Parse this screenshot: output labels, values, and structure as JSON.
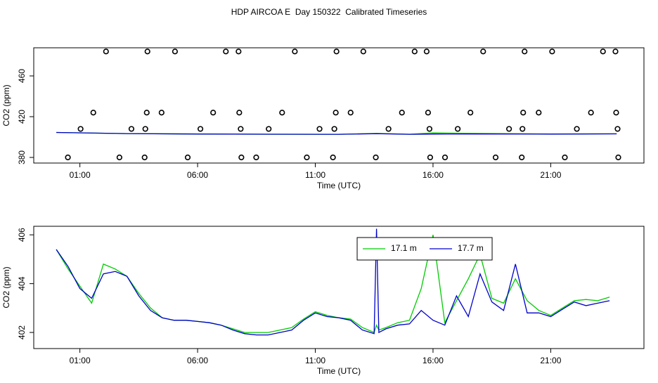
{
  "chart_data": [
    {
      "type": "line",
      "title": "HDP AIRCOA E  Day 150322  Calibrated Timeseries",
      "xlabel": "Time (UTC)",
      "ylabel": "CO2 (ppm)",
      "xlim": [
        -0.96,
        24.96
      ],
      "xticks": [
        {
          "value": 1,
          "label": "01:00"
        },
        {
          "value": 6,
          "label": "06:00"
        },
        {
          "value": 11,
          "label": "11:00"
        },
        {
          "value": 16,
          "label": "16:00"
        },
        {
          "value": 21,
          "label": "21:00"
        }
      ],
      "ylim": [
        374.5,
        487.6
      ],
      "yticks": [
        380,
        420,
        460
      ],
      "series": [
        {
          "type": "scatter",
          "color": "#000000",
          "x": [
            2.11,
            3.87,
            5.04,
            7.2,
            7.74,
            10.13,
            11.9,
            13.04,
            15.22,
            15.73,
            18.13,
            19.89,
            21.06,
            23.22,
            23.75,
            1.57,
            3.84,
            4.47,
            6.66,
            7.77,
            9.59,
            11.87,
            12.5,
            14.68,
            15.79,
            17.59,
            19.83,
            20.49,
            22.71,
            23.78,
            1.03,
            3.19,
            3.78,
            6.12,
            7.83,
            9.02,
            11.18,
            11.81,
            14.11,
            15.85,
            17.05,
            19.23,
            19.8,
            22.11,
            23.84,
            0.49,
            2.68,
            3.75,
            5.58,
            7.86,
            8.49,
            10.64,
            11.75,
            13.57,
            15.88,
            16.51,
            18.66,
            19.77,
            21.6,
            23.87
          ],
          "values": [
            484,
            484,
            484,
            484,
            484,
            484,
            484,
            484,
            484,
            484,
            484,
            484,
            484,
            484,
            484,
            424,
            424,
            424,
            424,
            424,
            424,
            424,
            424,
            424,
            424,
            424,
            424,
            424,
            424,
            424,
            408,
            408,
            408,
            408,
            408,
            408,
            408,
            408,
            408,
            408,
            408,
            408,
            408,
            408,
            408,
            380,
            380,
            380,
            380,
            380,
            380,
            380,
            380,
            380,
            380,
            380,
            380,
            380,
            380,
            380
          ]
        },
        {
          "type": "line",
          "color": "#00cc00",
          "x": [
            0,
            3,
            6,
            9,
            12,
            13.6,
            15,
            16,
            18,
            21,
            23.8
          ],
          "values": [
            404.5,
            403.4,
            403,
            402.8,
            402.7,
            403.5,
            402.8,
            404,
            403.5,
            403,
            403.2
          ]
        },
        {
          "type": "line",
          "color": "#0000cc",
          "x": [
            0,
            3,
            6,
            9,
            12,
            13.6,
            15,
            16,
            18,
            21,
            23.8
          ],
          "values": [
            404.5,
            403.4,
            403,
            402.8,
            402.7,
            403.3,
            402.7,
            402.9,
            403,
            402.9,
            403.1
          ]
        }
      ]
    },
    {
      "type": "line",
      "xlabel": "Time (UTC)",
      "ylabel": "CO2 (ppm)",
      "xlim": [
        -0.96,
        24.96
      ],
      "xticks": [
        {
          "value": 1,
          "label": "01:00"
        },
        {
          "value": 6,
          "label": "06:00"
        },
        {
          "value": 11,
          "label": "11:00"
        },
        {
          "value": 16,
          "label": "16:00"
        },
        {
          "value": 21,
          "label": "21:00"
        }
      ],
      "ylim": [
        401.34,
        406.35
      ],
      "yticks": [
        402,
        404,
        406
      ],
      "legend": "top",
      "series": [
        {
          "type": "line",
          "name": "17.1 m",
          "color": "#00cc00",
          "x": [
            0,
            0.5,
            1,
            1.5,
            2,
            2.5,
            3,
            3.5,
            4,
            4.5,
            5,
            5.5,
            6,
            6.5,
            7,
            7.5,
            8,
            8.5,
            9,
            9.5,
            10,
            10.5,
            11,
            11.5,
            12,
            12.5,
            13,
            13.5,
            13.6,
            13.7,
            14,
            14.5,
            15,
            15.5,
            16,
            16.5,
            17,
            17.5,
            18,
            18.5,
            19,
            19.5,
            20,
            20.5,
            21,
            21.5,
            22,
            22.5,
            23,
            23.5
          ],
          "values": [
            405.4,
            404.6,
            403.9,
            403.2,
            404.8,
            404.6,
            404.3,
            403.6,
            403,
            402.6,
            402.5,
            402.5,
            402.45,
            402.4,
            402.3,
            402.15,
            402.0,
            402.0,
            402.0,
            402.1,
            402.2,
            402.55,
            402.85,
            402.7,
            402.6,
            402.55,
            402.2,
            402.0,
            402.3,
            402.1,
            402.2,
            402.4,
            402.5,
            403.8,
            406.0,
            402.4,
            403.3,
            404.2,
            405.2,
            403.4,
            403.2,
            404.2,
            403.3,
            402.9,
            402.7,
            403.0,
            403.3,
            403.35,
            403.3,
            403.45
          ]
        },
        {
          "type": "line",
          "name": "17.7 m",
          "color": "#0000cc",
          "x": [
            0,
            0.5,
            1,
            1.5,
            2,
            2.5,
            3,
            3.5,
            4,
            4.5,
            5,
            5.5,
            6,
            6.5,
            7,
            7.5,
            8,
            8.5,
            9,
            9.5,
            10,
            10.5,
            11,
            11.5,
            12,
            12.5,
            13,
            13.5,
            13.6,
            13.7,
            14,
            14.5,
            15,
            15.5,
            16,
            16.5,
            17,
            17.5,
            18,
            18.5,
            19,
            19.5,
            20,
            20.5,
            21,
            21.5,
            22,
            22.5,
            23,
            23.5
          ],
          "values": [
            405.4,
            404.7,
            403.8,
            403.4,
            404.4,
            404.5,
            404.3,
            403.5,
            402.9,
            402.6,
            402.5,
            402.5,
            402.45,
            402.4,
            402.3,
            402.1,
            401.95,
            401.9,
            401.9,
            402.0,
            402.1,
            402.5,
            402.8,
            402.65,
            402.6,
            402.5,
            402.1,
            401.95,
            406.25,
            402.0,
            402.15,
            402.3,
            402.35,
            402.9,
            402.5,
            402.3,
            403.5,
            402.65,
            404.4,
            403.25,
            402.9,
            404.8,
            402.8,
            402.8,
            402.65,
            402.95,
            403.25,
            403.1,
            403.2,
            403.3
          ]
        }
      ]
    }
  ]
}
